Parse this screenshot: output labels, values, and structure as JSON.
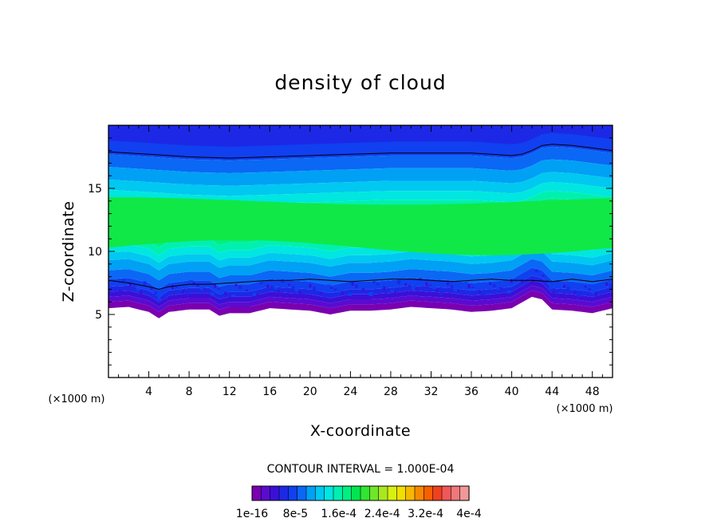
{
  "chart_data": {
    "type": "heatmap",
    "title": "density of cloud",
    "xlabel": "X-coordinate",
    "ylabel": "Z-coordinate",
    "x_unit": "(×1000 m)",
    "x_unit_right": "(×1000 m)",
    "xlim": [
      0,
      50
    ],
    "ylim": [
      0,
      20
    ],
    "x_ticks": [
      4,
      8,
      12,
      16,
      20,
      24,
      28,
      32,
      36,
      40,
      44,
      48
    ],
    "x_tick_labels": [
      "4",
      "8",
      "12",
      "16",
      "20",
      "24",
      "28",
      "32",
      "36",
      "40",
      "44",
      "48"
    ],
    "y_ticks": [
      5,
      10,
      15
    ],
    "y_tick_labels": [
      "5",
      "10",
      "15"
    ],
    "contour_interval_text": "CONTOUR INTERVAL = 1.000E-04",
    "colorbar": {
      "labels": [
        "1e-16",
        "8e-5",
        "1.6e-4",
        "2.4e-4",
        "3.2e-4",
        "4e-4"
      ],
      "colors": [
        "#7a00b0",
        "#5a0bd0",
        "#3a10d8",
        "#1d28e6",
        "#1040f0",
        "#0a68f5",
        "#00a0f5",
        "#00c8f0",
        "#00e6e0",
        "#00f0b0",
        "#00f080",
        "#00e650",
        "#30e630",
        "#70e628",
        "#a8e820",
        "#d8f010",
        "#f0e000",
        "#f8b800",
        "#f88800",
        "#f86000",
        "#f04020",
        "#f05858",
        "#f07878",
        "#f09898"
      ]
    },
    "cloud_base_profile": {
      "x": [
        0,
        2,
        4,
        5,
        6,
        8,
        10,
        11,
        12,
        14,
        16,
        18,
        20,
        22,
        24,
        26,
        28,
        30,
        32,
        34,
        36,
        38,
        40,
        42,
        43,
        44,
        46,
        48,
        50
      ],
      "z": [
        5.5,
        5.6,
        5.2,
        4.7,
        5.2,
        5.4,
        5.4,
        4.9,
        5.1,
        5.1,
        5.5,
        5.4,
        5.3,
        5.0,
        5.3,
        5.3,
        5.4,
        5.6,
        5.5,
        5.4,
        5.2,
        5.3,
        5.5,
        6.4,
        6.2,
        5.4,
        5.3,
        5.1,
        5.5
      ]
    },
    "contour_upper": {
      "x": [
        0,
        4,
        8,
        12,
        16,
        20,
        24,
        28,
        32,
        36,
        40,
        41,
        42,
        43,
        44,
        46,
        48,
        50
      ],
      "z": [
        17.9,
        17.7,
        17.5,
        17.4,
        17.5,
        17.6,
        17.7,
        17.8,
        17.8,
        17.8,
        17.6,
        17.7,
        18.0,
        18.4,
        18.5,
        18.4,
        18.2,
        18.0
      ]
    },
    "contour_lower": {
      "x": [
        0,
        2,
        4,
        5,
        6,
        8,
        10,
        12,
        14,
        16,
        18,
        20,
        22,
        24,
        26,
        28,
        30,
        32,
        34,
        36,
        38,
        40,
        42,
        44,
        46,
        48,
        50
      ],
      "z": [
        7.7,
        7.5,
        7.2,
        7.0,
        7.2,
        7.4,
        7.4,
        7.5,
        7.6,
        7.7,
        7.7,
        7.8,
        7.7,
        7.6,
        7.7,
        7.8,
        7.8,
        7.7,
        7.6,
        7.7,
        7.8,
        7.7,
        7.7,
        7.6,
        7.8,
        7.6,
        7.8
      ]
    }
  }
}
